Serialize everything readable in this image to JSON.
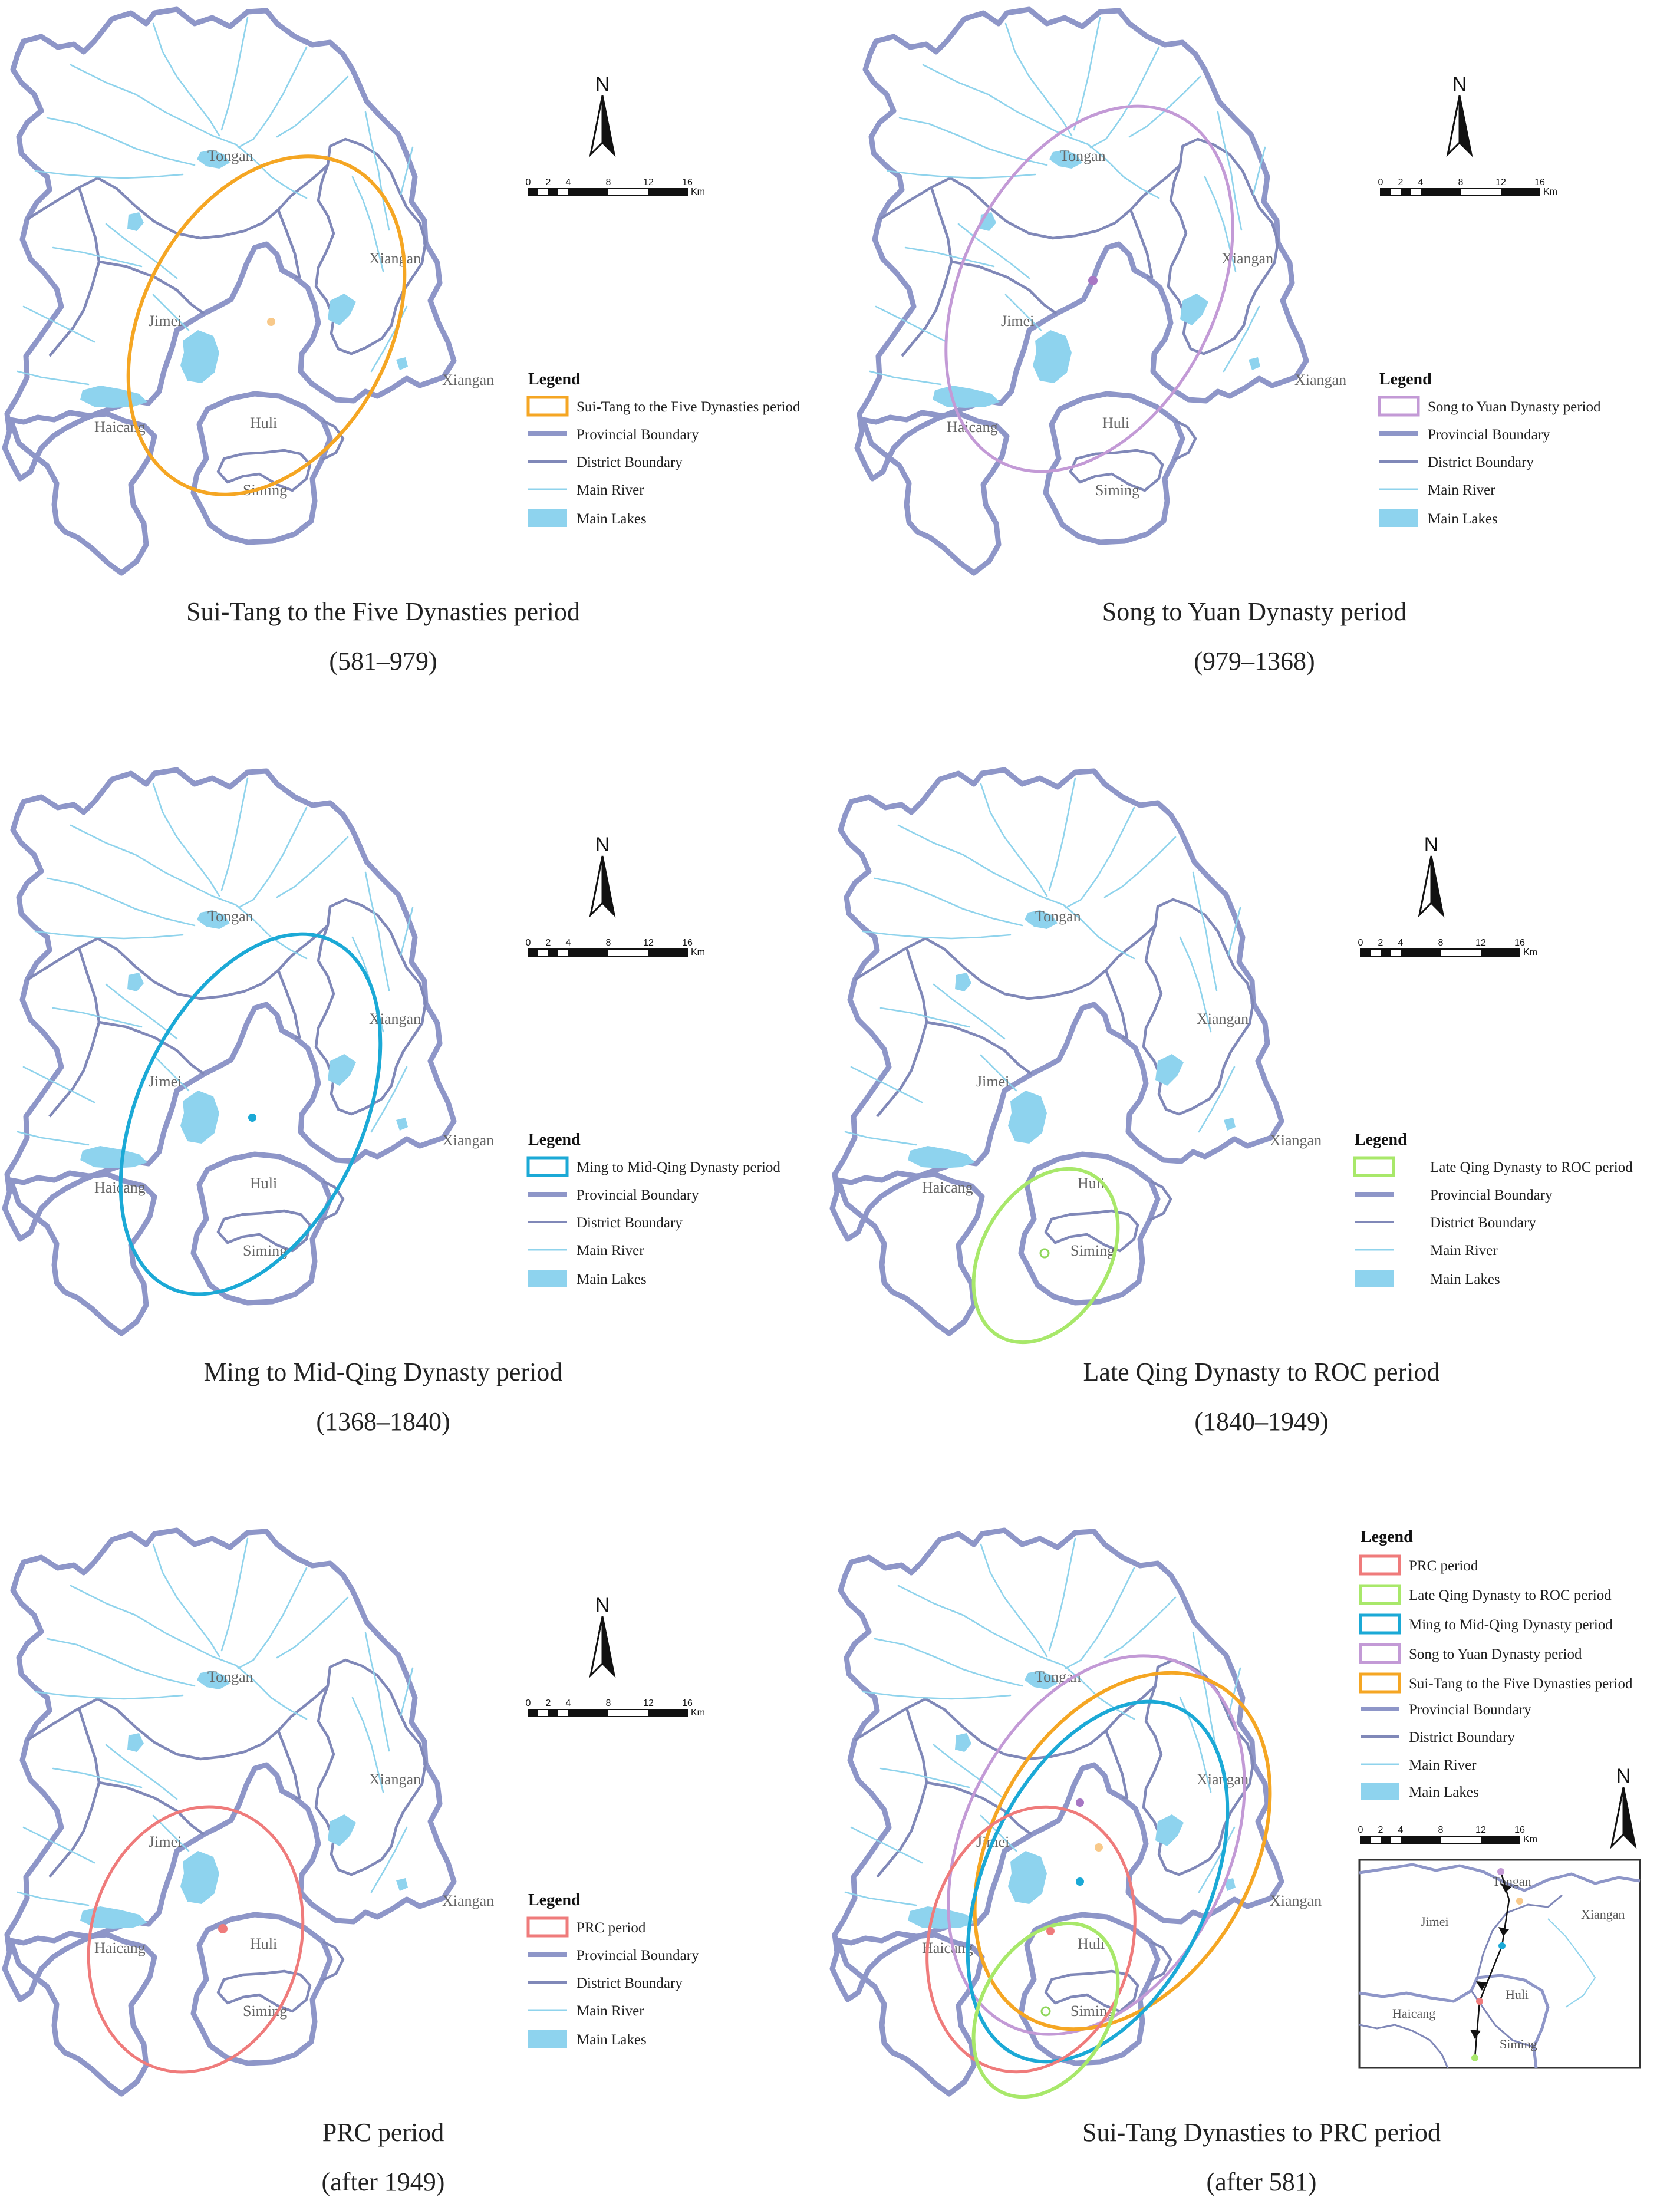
{
  "legend_common": {
    "title": "Legend",
    "provincial": "Provincial Boundary",
    "district": "District Boundary",
    "river": "Main River",
    "lakes": "Main Lakes"
  },
  "north": "N",
  "scale": {
    "ticks": [
      "0",
      "2",
      "4",
      "8",
      "12",
      "16"
    ],
    "unit": "Km"
  },
  "places": {
    "tongan": "Tongan",
    "xiangan": "Xiangan",
    "jimei": "Jimei",
    "haicang": "Haicang",
    "huli": "Huli",
    "siming": "Siming"
  },
  "colors": {
    "sui_tang": "#f5a623",
    "song_yuan": "#c39ad6",
    "ming_qing": "#1ba9d6",
    "late_qing": "#a8e86a",
    "prc": "#ef7b7b",
    "boundary": "#8e96c8",
    "river": "#8fd3ec",
    "lake": "#8ed3ee"
  },
  "panels": [
    {
      "id": "sui_tang",
      "legend": "Sui-Tang to the Five Dynasties period",
      "caption": "Sui-Tang to the Five Dynasties period",
      "years": "(581–979)"
    },
    {
      "id": "song_yuan",
      "legend": "Song to Yuan Dynasty period",
      "caption": "Song to Yuan Dynasty period",
      "years": "(979–1368)"
    },
    {
      "id": "ming_qing",
      "legend": "Ming to Mid-Qing Dynasty period",
      "caption": "Ming to Mid-Qing Dynasty period",
      "years": "(1368–1840)"
    },
    {
      "id": "late_qing",
      "legend": "Late Qing Dynasty to ROC period",
      "caption": "Late Qing Dynasty to ROC period",
      "years": "(1840–1949)"
    },
    {
      "id": "prc",
      "legend": "PRC period",
      "caption": "PRC period",
      "years": "(after 1949)"
    },
    {
      "id": "combined",
      "legend": "",
      "caption": "Sui-Tang Dynasties to PRC period",
      "years": "(after 581)"
    }
  ],
  "combined_legend": [
    "PRC period",
    "Late Qing Dynasty to ROC period",
    "Ming to Mid-Qing Dynasty period",
    "Song to Yuan Dynasty period",
    "Sui-Tang to the Five Dynasties period"
  ]
}
